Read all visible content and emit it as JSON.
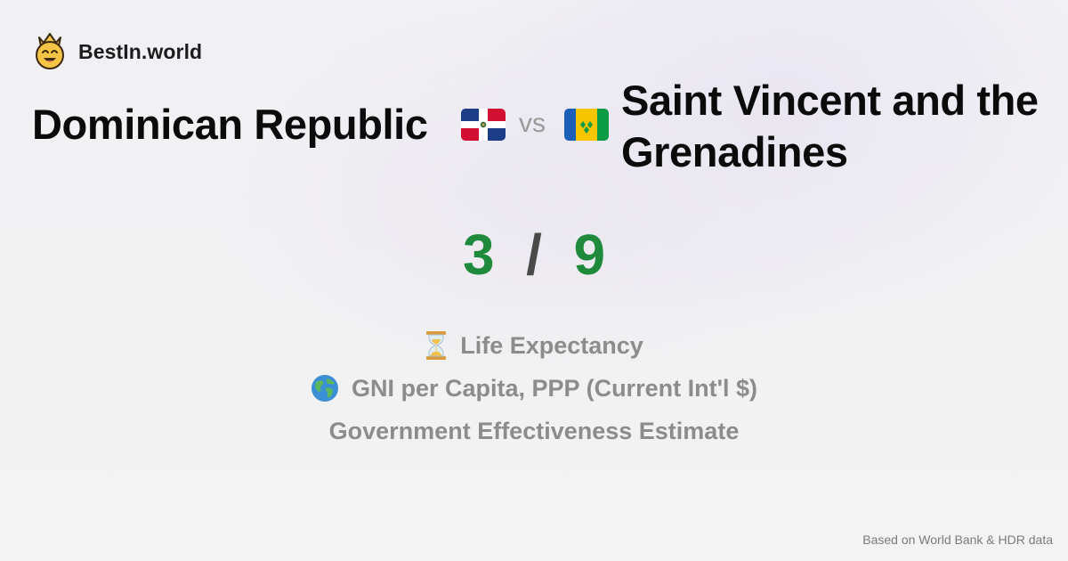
{
  "brand": {
    "name": "BestIn.world",
    "logo_icon": "crowned-smiley-icon"
  },
  "comparison": {
    "country_a": {
      "name": "Dominican Republic",
      "flag_icon": "dominican-republic-flag-icon"
    },
    "vs_label": "vs",
    "country_b": {
      "name": "Saint Vincent and the Grenadines",
      "flag_icon": "saint-vincent-grenadines-flag-icon"
    }
  },
  "score": {
    "a": "3",
    "separator": "/",
    "b": "9"
  },
  "metrics": [
    {
      "label": "Life Expectancy",
      "icon": "hourglass-icon"
    },
    {
      "label": "GNI per Capita, PPP (Current Int'l $)",
      "icon": "globe-icon"
    },
    {
      "label": "Government Effectiveness Estimate",
      "icon": ""
    }
  ],
  "footer": {
    "source": "Based on World Bank & HDR data"
  },
  "colors": {
    "score": "#1f8a3b",
    "metric_text": "#8c8c8c",
    "vs": "#9a9a9a"
  }
}
